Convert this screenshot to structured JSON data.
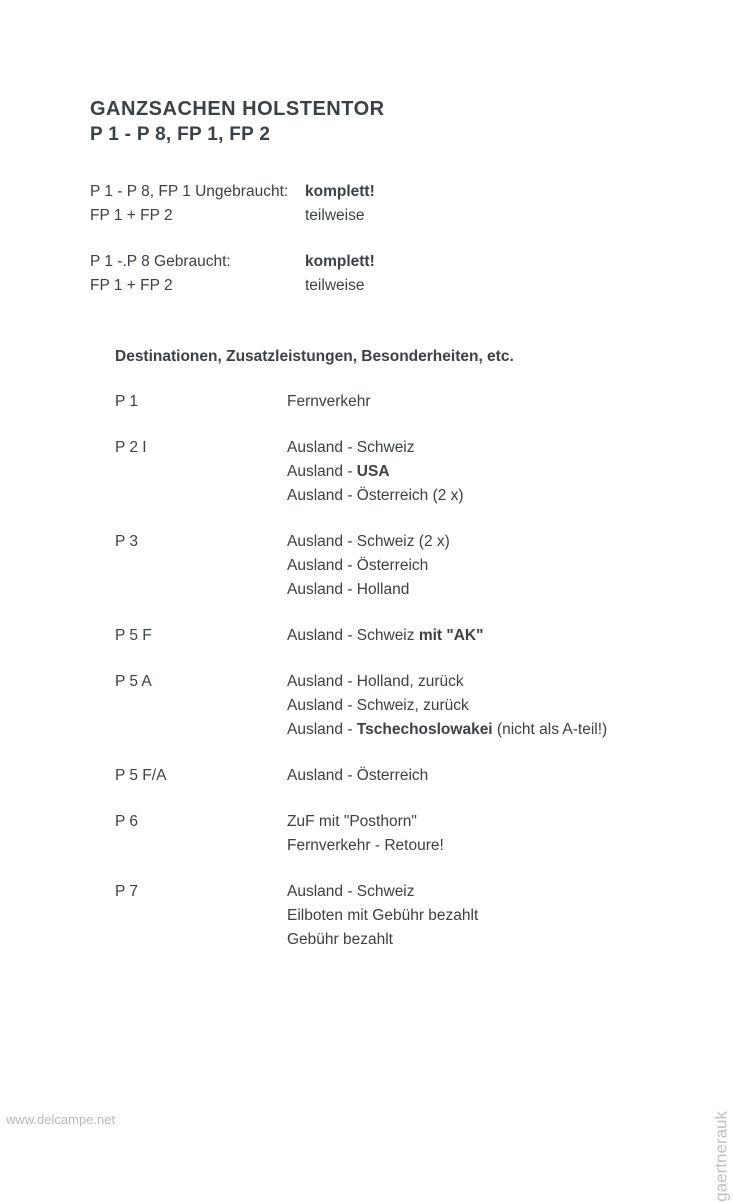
{
  "title": {
    "line1": "GANZSACHEN HOLSTENTOR",
    "line2": "P 1 - P 8, FP 1, FP 2"
  },
  "status": {
    "group1": [
      {
        "label": "P 1 - P 8, FP 1 Ungebraucht:",
        "value": "komplett!",
        "bold": true
      },
      {
        "label": "FP 1 + FP 2",
        "value": "teilweise",
        "bold": false
      }
    ],
    "group2": [
      {
        "label": "P 1 -.P 8 Gebraucht:",
        "value": "komplett!",
        "bold": true
      },
      {
        "label": "FP 1 + FP 2",
        "value": "teilweise",
        "bold": false
      }
    ]
  },
  "destinations": {
    "heading": "Destinationen, Zusatzleistungen, Besonderheiten, etc.",
    "rows": [
      {
        "label": "P 1",
        "lines": [
          {
            "parts": [
              {
                "text": "Fernverkehr",
                "bold": false
              }
            ]
          }
        ]
      },
      {
        "label": "P 2 I",
        "lines": [
          {
            "parts": [
              {
                "text": "Ausland - Schweiz",
                "bold": false
              }
            ]
          },
          {
            "parts": [
              {
                "text": "Ausland - ",
                "bold": false
              },
              {
                "text": "USA",
                "bold": true
              }
            ]
          },
          {
            "parts": [
              {
                "text": "Ausland - Österreich (2 x)",
                "bold": false
              }
            ]
          }
        ]
      },
      {
        "label": "P 3",
        "lines": [
          {
            "parts": [
              {
                "text": "Ausland - Schweiz (2 x)",
                "bold": false
              }
            ]
          },
          {
            "parts": [
              {
                "text": "Ausland - Österreich",
                "bold": false
              }
            ]
          },
          {
            "parts": [
              {
                "text": "Ausland - Holland",
                "bold": false
              }
            ]
          }
        ]
      },
      {
        "label": "P 5 F",
        "lines": [
          {
            "parts": [
              {
                "text": "Ausland - Schweiz ",
                "bold": false
              },
              {
                "text": "mit \"AK\"",
                "bold": true
              }
            ]
          }
        ]
      },
      {
        "label": "P 5 A",
        "lines": [
          {
            "parts": [
              {
                "text": "Ausland - Holland, zurück",
                "bold": false
              }
            ]
          },
          {
            "parts": [
              {
                "text": "Ausland - Schweiz, zurück",
                "bold": false
              }
            ]
          },
          {
            "parts": [
              {
                "text": "Ausland - ",
                "bold": false
              },
              {
                "text": "Tschechoslowakei",
                "bold": true
              },
              {
                "text": " (nicht als A-teil!)",
                "bold": false
              }
            ]
          }
        ]
      },
      {
        "label": "P 5 F/A",
        "lines": [
          {
            "parts": [
              {
                "text": "Ausland - Österreich",
                "bold": false
              }
            ]
          }
        ]
      },
      {
        "label": "P 6",
        "lines": [
          {
            "parts": [
              {
                "text": "ZuF mit \"Posthorn\"",
                "bold": false
              }
            ]
          },
          {
            "parts": [
              {
                "text": "Fernverkehr - Retoure!",
                "bold": false
              }
            ]
          }
        ]
      },
      {
        "label": "P 7",
        "lines": [
          {
            "parts": [
              {
                "text": "Ausland - Schweiz",
                "bold": false
              }
            ]
          },
          {
            "parts": [
              {
                "text": "Eilboten mit Gebühr bezahlt",
                "bold": false
              }
            ]
          },
          {
            "parts": [
              {
                "text": "Gebühr bezahlt",
                "bold": false
              }
            ]
          }
        ]
      }
    ]
  },
  "watermarks": {
    "left": "www.delcampe.net",
    "right": "gaertnerauk"
  },
  "colors": {
    "text": "#3a4148",
    "background": "#ffffff",
    "watermark": "#b8b8b8"
  },
  "typography": {
    "body_fontsize": 15.5,
    "title_fontsize": 20,
    "font_family": "Arial, Helvetica, sans-serif"
  }
}
